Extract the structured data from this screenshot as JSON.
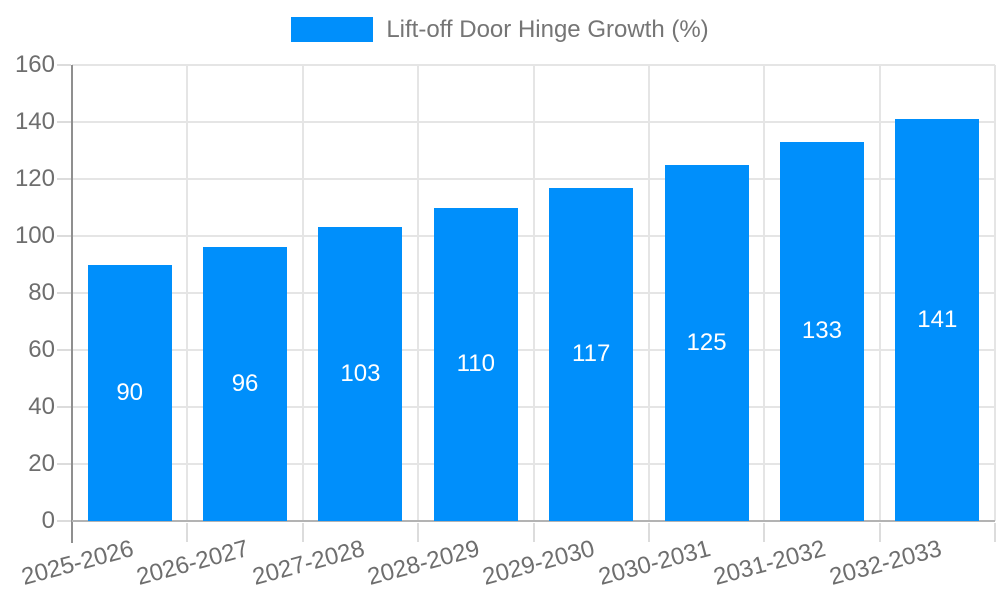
{
  "legend": {
    "label": "Lift-off Door Hinge Growth (%)"
  },
  "chart_data": {
    "type": "bar",
    "title": "Lift-off Door Hinge Growth (%)",
    "categories": [
      "2025-2026",
      "2026-2027",
      "2027-2028",
      "2028-2029",
      "2029-2030",
      "2030-2031",
      "2031-2032",
      "2032-2033"
    ],
    "values": [
      90,
      96,
      103,
      110,
      117,
      125,
      133,
      141
    ],
    "series": [
      {
        "name": "Lift-off Door Hinge Growth (%)",
        "values": [
          90,
          96,
          103,
          110,
          117,
          125,
          133,
          141
        ]
      }
    ],
    "xlabel": "",
    "ylabel": "",
    "ylim": [
      0,
      160
    ],
    "ytick_step": 20,
    "yticks": [
      0,
      20,
      40,
      60,
      80,
      100,
      120,
      140,
      160
    ],
    "grid": true,
    "legend_position": "top",
    "bar_value_labels": "inside-center",
    "colors": {
      "bar": "#008FFB",
      "bar_value_label": "#ffffff",
      "axis_text": "#6e6e6e",
      "legend_text": "#757575",
      "grid": "#e5e5e5",
      "tick_mark": "#dcdcdc",
      "y_axis_line": "#8f8f8f",
      "x_axis_line": "#b3b3b3"
    }
  }
}
